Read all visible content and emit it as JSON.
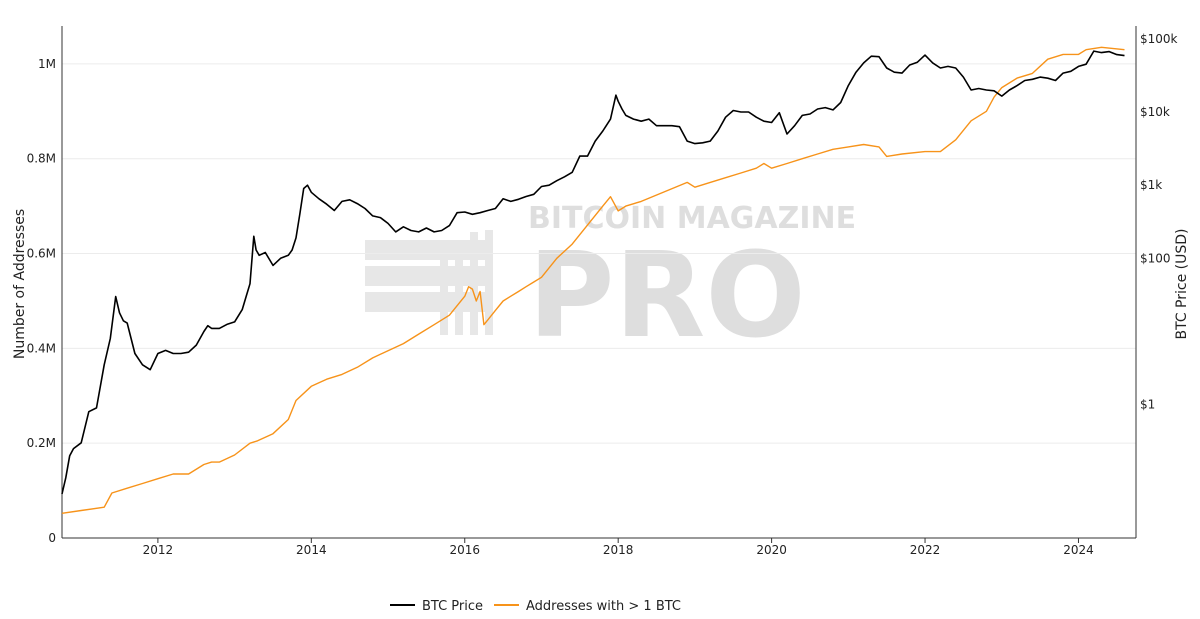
{
  "chart_data": {
    "type": "line",
    "xlabel": "",
    "ylabel": "Number of Addresses",
    "y2label": "BTC Price (USD)",
    "y2scale": "log",
    "x_range": [
      2010.75,
      2024.75
    ],
    "ylim": [
      0,
      1080000
    ],
    "y2lim": [
      0.015,
      150000
    ],
    "grid": true,
    "legend_position": "bottom-center",
    "x_ticks": [
      {
        "value": 2012,
        "label": "2012"
      },
      {
        "value": 2014,
        "label": "2014"
      },
      {
        "value": 2016,
        "label": "2016"
      },
      {
        "value": 2018,
        "label": "2018"
      },
      {
        "value": 2020,
        "label": "2020"
      },
      {
        "value": 2022,
        "label": "2022"
      },
      {
        "value": 2024,
        "label": "2024"
      }
    ],
    "y_ticks": [
      {
        "value": 0,
        "label": "0"
      },
      {
        "value": 200000,
        "label": "0.2M"
      },
      {
        "value": 400000,
        "label": "0.4M"
      },
      {
        "value": 600000,
        "label": "0.6M"
      },
      {
        "value": 800000,
        "label": "0.8M"
      },
      {
        "value": 1000000,
        "label": "1M"
      }
    ],
    "y2_ticks": [
      {
        "value": 1,
        "label": "$1"
      },
      {
        "value": 100,
        "label": "$100"
      },
      {
        "value": 1000,
        "label": "$1k"
      },
      {
        "value": 10000,
        "label": "$10k"
      },
      {
        "value": 100000,
        "label": "$100k"
      }
    ],
    "series": [
      {
        "name": "BTC Price",
        "axis": "y2",
        "color": "#000000",
        "x": [
          2010.75,
          2010.8,
          2010.85,
          2010.9,
          2011.0,
          2011.1,
          2011.2,
          2011.3,
          2011.38,
          2011.45,
          2011.5,
          2011.55,
          2011.6,
          2011.7,
          2011.8,
          2011.9,
          2012.0,
          2012.1,
          2012.2,
          2012.3,
          2012.4,
          2012.5,
          2012.6,
          2012.65,
          2012.7,
          2012.8,
          2012.9,
          2013.0,
          2013.1,
          2013.15,
          2013.2,
          2013.25,
          2013.28,
          2013.32,
          2013.4,
          2013.5,
          2013.6,
          2013.7,
          2013.75,
          2013.8,
          2013.85,
          2013.9,
          2013.95,
          2014.0,
          2014.1,
          2014.2,
          2014.3,
          2014.4,
          2014.5,
          2014.6,
          2014.7,
          2014.8,
          2014.9,
          2015.0,
          2015.1,
          2015.2,
          2015.3,
          2015.4,
          2015.5,
          2015.6,
          2015.7,
          2015.8,
          2015.9,
          2016.0,
          2016.1,
          2016.2,
          2016.3,
          2016.4,
          2016.5,
          2016.6,
          2016.7,
          2016.8,
          2016.9,
          2017.0,
          2017.1,
          2017.2,
          2017.3,
          2017.4,
          2017.5,
          2017.6,
          2017.7,
          2017.8,
          2017.9,
          2017.97,
          2018.0,
          2018.05,
          2018.1,
          2018.2,
          2018.3,
          2018.4,
          2018.5,
          2018.6,
          2018.7,
          2018.8,
          2018.9,
          2019.0,
          2019.1,
          2019.2,
          2019.3,
          2019.4,
          2019.5,
          2019.6,
          2019.7,
          2019.8,
          2019.9,
          2020.0,
          2020.1,
          2020.2,
          2020.3,
          2020.4,
          2020.5,
          2020.6,
          2020.7,
          2020.8,
          2020.9,
          2021.0,
          2021.1,
          2021.2,
          2021.3,
          2021.4,
          2021.5,
          2021.6,
          2021.7,
          2021.8,
          2021.9,
          2022.0,
          2022.1,
          2022.2,
          2022.3,
          2022.4,
          2022.5,
          2022.6,
          2022.7,
          2022.8,
          2022.9,
          2023.0,
          2023.1,
          2023.2,
          2023.3,
          2023.4,
          2023.5,
          2023.6,
          2023.7,
          2023.8,
          2023.9,
          2024.0,
          2024.1,
          2024.2,
          2024.3,
          2024.4,
          2024.5,
          2024.6
        ],
        "values": [
          0.06,
          0.1,
          0.2,
          0.25,
          0.3,
          0.8,
          0.9,
          3.5,
          8,
          30,
          18,
          14,
          13,
          5,
          3.5,
          3,
          5,
          5.5,
          5,
          5,
          5.2,
          6.5,
          10,
          12,
          11,
          11,
          12.5,
          13.5,
          20,
          30,
          45,
          200,
          130,
          110,
          120,
          80,
          100,
          110,
          130,
          190,
          400,
          900,
          1000,
          800,
          650,
          550,
          450,
          600,
          630,
          560,
          480,
          380,
          360,
          300,
          230,
          270,
          240,
          230,
          260,
          230,
          240,
          280,
          420,
          430,
          400,
          420,
          450,
          480,
          650,
          600,
          640,
          700,
          750,
          960,
          1000,
          1150,
          1300,
          1500,
          2500,
          2500,
          4000,
          5500,
          8000,
          17000,
          14000,
          11000,
          9000,
          8000,
          7500,
          8000,
          6500,
          6500,
          6500,
          6300,
          4000,
          3700,
          3800,
          4000,
          5500,
          8500,
          10500,
          10000,
          10000,
          8500,
          7500,
          7200,
          9800,
          5000,
          6500,
          9000,
          9400,
          11000,
          11500,
          10700,
          13500,
          23000,
          35000,
          47000,
          58000,
          57000,
          40000,
          35000,
          34000,
          44000,
          48000,
          60000,
          47000,
          40000,
          42000,
          40000,
          30000,
          20000,
          21000,
          20000,
          19500,
          16500,
          20000,
          23000,
          27000,
          28000,
          30000,
          29000,
          27000,
          34000,
          36000,
          42000,
          45000,
          68000,
          65000,
          67000,
          61000,
          59000
        ]
      },
      {
        "name": "Addresses with > 1 BTC",
        "axis": "y",
        "color": "#f7931a",
        "x": [
          2010.75,
          2011.0,
          2011.3,
          2011.4,
          2011.6,
          2011.8,
          2012.0,
          2012.2,
          2012.4,
          2012.6,
          2012.7,
          2012.8,
          2013.0,
          2013.2,
          2013.3,
          2013.5,
          2013.7,
          2013.8,
          2014.0,
          2014.2,
          2014.4,
          2014.6,
          2014.8,
          2015.0,
          2015.2,
          2015.4,
          2015.6,
          2015.8,
          2015.9,
          2016.0,
          2016.05,
          2016.1,
          2016.15,
          2016.2,
          2016.25,
          2016.3,
          2016.4,
          2016.5,
          2016.6,
          2016.7,
          2016.8,
          2016.9,
          2017.0,
          2017.2,
          2017.4,
          2017.6,
          2017.8,
          2017.9,
          2018.0,
          2018.1,
          2018.3,
          2018.6,
          2018.9,
          2019.0,
          2019.2,
          2019.4,
          2019.6,
          2019.8,
          2019.9,
          2020.0,
          2020.2,
          2020.4,
          2020.6,
          2020.8,
          2021.0,
          2021.2,
          2021.4,
          2021.5,
          2021.7,
          2022.0,
          2022.2,
          2022.4,
          2022.5,
          2022.6,
          2022.8,
          2022.9,
          2023.0,
          2023.2,
          2023.4,
          2023.6,
          2023.8,
          2024.0,
          2024.1,
          2024.3,
          2024.6
        ],
        "values": [
          52000,
          58000,
          65000,
          95000,
          105000,
          115000,
          125000,
          135000,
          135000,
          155000,
          160000,
          160000,
          175000,
          200000,
          205000,
          220000,
          250000,
          290000,
          320000,
          335000,
          345000,
          360000,
          380000,
          395000,
          410000,
          430000,
          450000,
          470000,
          490000,
          510000,
          530000,
          525000,
          500000,
          520000,
          450000,
          460000,
          480000,
          500000,
          510000,
          520000,
          530000,
          540000,
          550000,
          590000,
          620000,
          660000,
          700000,
          720000,
          690000,
          700000,
          710000,
          730000,
          750000,
          740000,
          750000,
          760000,
          770000,
          780000,
          790000,
          780000,
          790000,
          800000,
          810000,
          820000,
          825000,
          830000,
          825000,
          805000,
          810000,
          815000,
          815000,
          840000,
          860000,
          880000,
          900000,
          930000,
          950000,
          970000,
          980000,
          1010000,
          1020000,
          1020000,
          1030000,
          1035000,
          1030000
        ]
      }
    ]
  }
}
